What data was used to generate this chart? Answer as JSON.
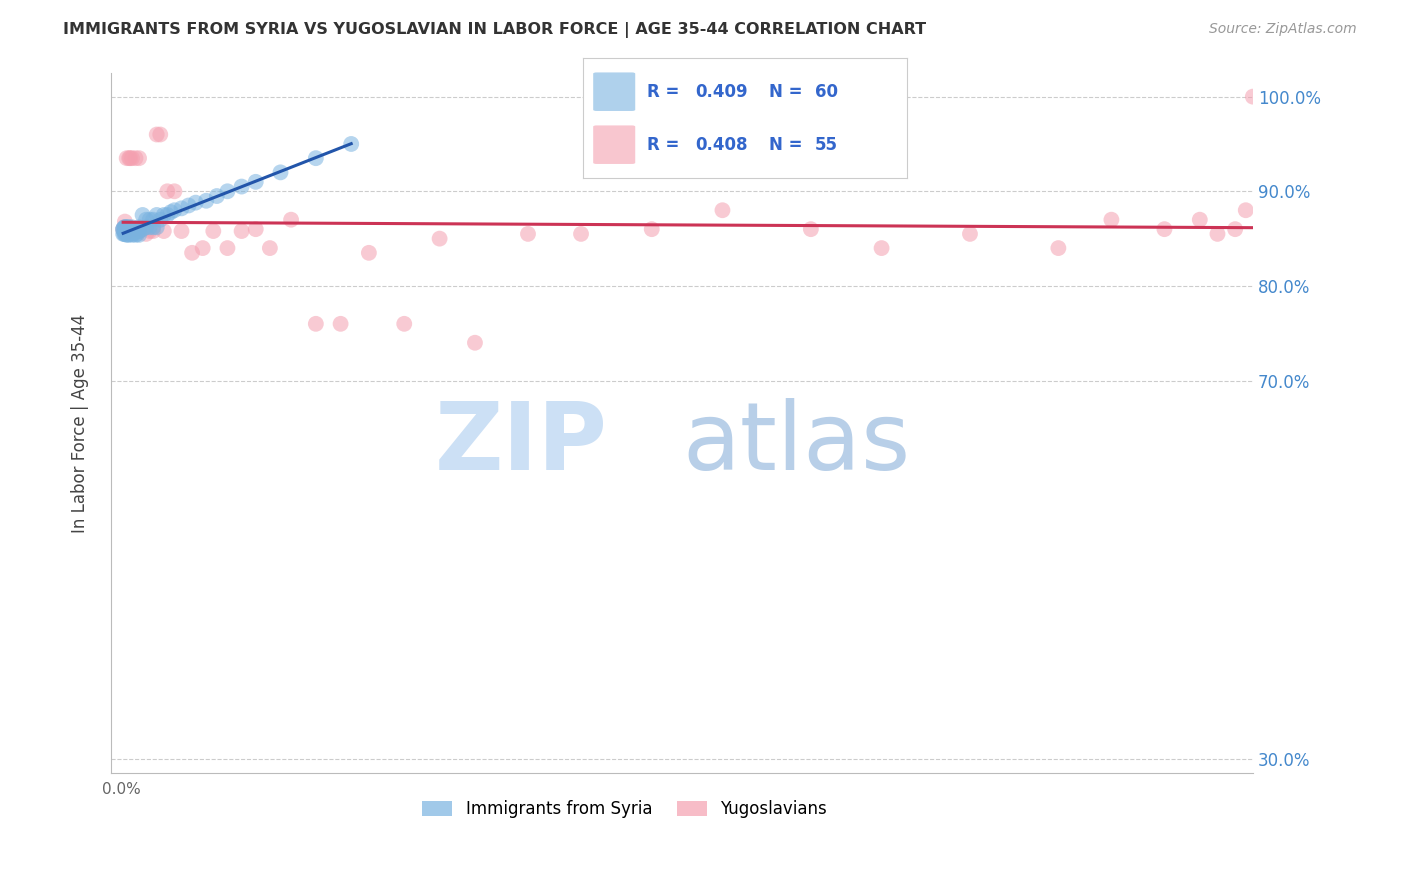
{
  "title": "IMMIGRANTS FROM SYRIA VS YUGOSLAVIAN IN LABOR FORCE | AGE 35-44 CORRELATION CHART",
  "source": "Source: ZipAtlas.com",
  "ylabel": "In Labor Force | Age 35-44",
  "xlim": [
    -0.003,
    0.32
  ],
  "ylim": [
    0.285,
    1.025
  ],
  "grid_color": "#cccccc",
  "background_color": "#ffffff",
  "syria_color": "#7ab3e0",
  "yugoslavian_color": "#f4a0b0",
  "syria_R": 0.409,
  "syria_N": 60,
  "yugoslavian_R": 0.408,
  "yugoslavian_N": 55,
  "syria_line_color": "#2255aa",
  "yugoslavian_line_color": "#cc3355",
  "legend_color": "#3366cc",
  "syria_x": [
    0.0005,
    0.0005,
    0.0005,
    0.0008,
    0.0008,
    0.001,
    0.001,
    0.001,
    0.0012,
    0.0012,
    0.0015,
    0.0015,
    0.0015,
    0.0018,
    0.0018,
    0.002,
    0.002,
    0.002,
    0.0022,
    0.0022,
    0.0025,
    0.0025,
    0.003,
    0.003,
    0.003,
    0.0032,
    0.0035,
    0.0035,
    0.004,
    0.004,
    0.0045,
    0.005,
    0.005,
    0.005,
    0.006,
    0.006,
    0.007,
    0.007,
    0.008,
    0.008,
    0.009,
    0.009,
    0.01,
    0.01,
    0.011,
    0.012,
    0.013,
    0.014,
    0.015,
    0.017,
    0.019,
    0.021,
    0.024,
    0.027,
    0.03,
    0.034,
    0.038,
    0.045,
    0.055,
    0.065
  ],
  "syria_y": [
    0.855,
    0.86,
    0.86,
    0.855,
    0.862,
    0.855,
    0.858,
    0.862,
    0.856,
    0.862,
    0.854,
    0.858,
    0.862,
    0.855,
    0.86,
    0.854,
    0.858,
    0.862,
    0.856,
    0.862,
    0.855,
    0.86,
    0.854,
    0.858,
    0.862,
    0.856,
    0.855,
    0.86,
    0.854,
    0.858,
    0.855,
    0.854,
    0.858,
    0.862,
    0.86,
    0.875,
    0.862,
    0.87,
    0.862,
    0.87,
    0.862,
    0.87,
    0.862,
    0.875,
    0.87,
    0.875,
    0.875,
    0.878,
    0.88,
    0.882,
    0.885,
    0.888,
    0.89,
    0.895,
    0.9,
    0.905,
    0.91,
    0.92,
    0.935,
    0.95
  ],
  "yugoslavian_x": [
    0.0005,
    0.0008,
    0.001,
    0.001,
    0.0012,
    0.0015,
    0.0018,
    0.002,
    0.0022,
    0.0025,
    0.003,
    0.003,
    0.0035,
    0.004,
    0.005,
    0.005,
    0.006,
    0.007,
    0.008,
    0.009,
    0.01,
    0.011,
    0.012,
    0.013,
    0.015,
    0.017,
    0.02,
    0.023,
    0.026,
    0.03,
    0.034,
    0.038,
    0.042,
    0.048,
    0.055,
    0.062,
    0.07,
    0.08,
    0.09,
    0.1,
    0.115,
    0.13,
    0.15,
    0.17,
    0.195,
    0.215,
    0.24,
    0.265,
    0.28,
    0.295,
    0.305,
    0.31,
    0.315,
    0.318,
    0.32
  ],
  "yugoslavian_y": [
    0.86,
    0.858,
    0.862,
    0.868,
    0.856,
    0.935,
    0.858,
    0.86,
    0.935,
    0.935,
    0.858,
    0.935,
    0.86,
    0.935,
    0.858,
    0.935,
    0.86,
    0.855,
    0.858,
    0.858,
    0.96,
    0.96,
    0.858,
    0.9,
    0.9,
    0.858,
    0.835,
    0.84,
    0.858,
    0.84,
    0.858,
    0.86,
    0.84,
    0.87,
    0.76,
    0.76,
    0.835,
    0.76,
    0.85,
    0.74,
    0.855,
    0.855,
    0.86,
    0.88,
    0.86,
    0.84,
    0.855,
    0.84,
    0.87,
    0.86,
    0.87,
    0.855,
    0.86,
    0.88,
    1.0
  ]
}
